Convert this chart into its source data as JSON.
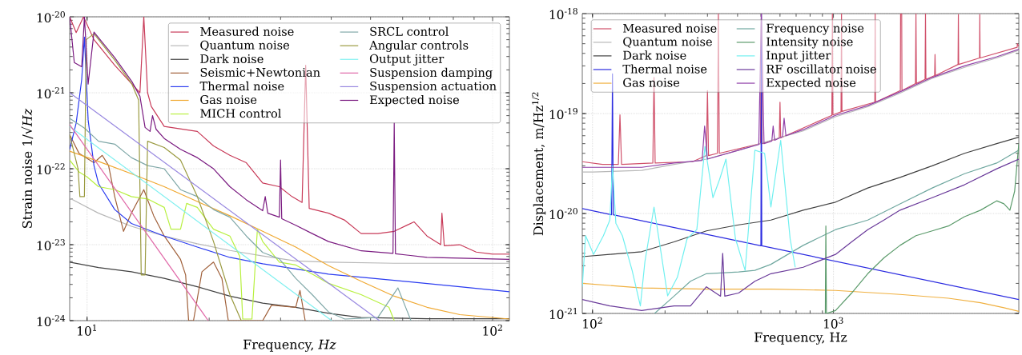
{
  "chart_data": [
    {
      "type": "line",
      "xlabel": "Frequency, *Hz*",
      "ylabel": "Strain noise 1/√*Hz*",
      "log": "xy",
      "grid": true,
      "legend": "top right",
      "xlim": [
        9.06,
        110
      ],
      "ylim": [
        1e-24,
        1e-20
      ],
      "xticks": [
        {
          "value": 10,
          "label": "10$^{1}$"
        },
        {
          "value": 100,
          "label": "10$^{2}$"
        }
      ],
      "yticks": [
        {
          "value": 1e-24,
          "label": "10$^{-24}$"
        },
        {
          "value": 1e-23,
          "label": "10$^{-23}$"
        },
        {
          "value": 1e-22,
          "label": "10$^{-22}$"
        },
        {
          "value": 1e-21,
          "label": "10$^{-21}$"
        },
        {
          "value": 1e-20,
          "label": "10$^{-20}$"
        }
      ],
      "series": [
        {
          "name": "Measured noise",
          "color": "#c83a58",
          "x": [
            9.06,
            9.4,
            9.8,
            10.4,
            11.7,
            12.9,
            13.5,
            13.8,
            14.1,
            14.4,
            15.5,
            18.7,
            20.5,
            22.5,
            24.7,
            27.1,
            29.8,
            32.0,
            33.9,
            34.6,
            35.3,
            39.4,
            43.2,
            47.4,
            52.1,
            57.2,
            64,
            68.9,
            74.5,
            75,
            76,
            83,
            91.1,
            100,
            110
          ],
          "values": [
            1e-20,
            6.2e-21,
            1e-20,
            5e-21,
            2.3e-21,
            1.3e-21,
            1e-21,
            1e-20,
            1e-21,
            6.6e-22,
            3.6e-22,
            3.1e-22,
            2e-22,
            1.5e-22,
            1.2e-22,
            6.5e-23,
            5.8e-23,
            4.3e-23,
            3.6e-23,
            2.3e-21,
            3e-23,
            2.6e-23,
            2.1e-23,
            1.4e-23,
            1.4e-23,
            1.5e-23,
            2e-23,
            1.3e-23,
            1e-23,
            2.6e-23,
            9.7e-24,
            1e-23,
            8e-24,
            7.5e-24,
            7.5e-24
          ]
        },
        {
          "name": "Quantum noise",
          "color": "#b8b8b8",
          "x": [
            9.06,
            10.67,
            12.86,
            15.5,
            18.7,
            22.5,
            27.1,
            32.7,
            39.4,
            57.2,
            110
          ],
          "values": [
            4.1e-23,
            2.6e-23,
            1.75e-23,
            1.3e-23,
            1.03e-23,
            8.4e-24,
            7.1e-24,
            6.1e-24,
            5.9e-24,
            5.7e-24,
            5.7e-24
          ]
        },
        {
          "name": "Dark noise",
          "color": "#404040",
          "x": [
            9.06,
            10.67,
            12.86,
            15.5,
            18.7,
            22.5,
            27.1,
            32.7,
            39.4,
            47.4,
            57.2,
            68.9,
            110
          ],
          "values": [
            5.9e-24,
            5e-24,
            4.4e-24,
            3.6e-24,
            2.8e-24,
            2.1e-24,
            1.7e-24,
            1.5e-24,
            1.25e-24,
            1.1e-24,
            1.08e-24,
            1.06e-24,
            1.06e-24
          ]
        },
        {
          "name": "Seismic+Newtonian",
          "color": "#a0603a",
          "x": [
            9.06,
            9.55,
            10.4,
            10.9,
            11.3,
            11.7,
            12.3,
            12.86,
            13.8,
            14.6,
            15.5,
            17.0,
            17.5,
            17.8,
            18.3,
            19.2,
            20.5,
            21.5,
            22.3,
            27.1,
            28.5,
            32.7,
            33.5,
            34.5
          ],
          "values": [
            2.8e-22,
            1.6e-22,
            1.2e-22,
            1.5e-22,
            1.1e-22,
            4.3e-23,
            1.5e-23,
            2.6e-23,
            5.3e-23,
            2.4e-23,
            1.3e-23,
            6.4e-24,
            4e-24,
            1e-24,
            1e-24,
            4.4e-24,
            5.9e-24,
            3.6e-24,
            1e-24,
            1e-24,
            1.6e-24,
            1.5e-24,
            2.5e-24,
            1e-24
          ]
        },
        {
          "name": "Thermal noise",
          "color": "#2b3cf0",
          "x": [
            9.06,
            9.4,
            9.7,
            9.85,
            10.06,
            10.4,
            10.67,
            11.7,
            12.86,
            15.5,
            18.7,
            22.5,
            27.1,
            32.7,
            39.4,
            57.2,
            83,
            110
          ],
          "values": [
            1.8e-22,
            4e-22,
            1.5e-21,
            5.4e-21,
            4.4e-22,
            1.1e-22,
            6.4e-23,
            2.9e-23,
            1.9e-23,
            1.3e-23,
            9.3e-24,
            6.8e-24,
            5.6e-24,
            4.8e-24,
            4.1e-24,
            3.4e-24,
            2.8e-24,
            2.4e-24
          ]
        },
        {
          "name": "Gas noise",
          "color": "#f0a830",
          "x": [
            9.06,
            10.67,
            12.86,
            15.5,
            18.7,
            22.5,
            27.1,
            32.7,
            39.4,
            47.4,
            57.2,
            68.9,
            83,
            110
          ],
          "values": [
            1.7e-22,
            1.25e-22,
            8.6e-23,
            5.8e-23,
            3.7e-23,
            2.4e-23,
            1.5e-23,
            9.3e-24,
            5.3e-24,
            3.3e-24,
            2.1e-24,
            1.5e-24,
            1.2e-24,
            1.05e-24
          ]
        },
        {
          "name": "MICH control",
          "color": "#b8f040",
          "x": [
            9.06,
            9.55,
            10.0,
            10.67,
            11.72,
            12.86,
            14.1,
            15.5,
            16.1,
            17.0,
            17.6,
            18.7,
            20.5,
            22.5,
            23.8,
            24.2,
            25.5,
            26.3,
            27.1,
            29.8,
            32.7,
            35.9,
            39.4,
            47.4,
            55.5,
            57.2
          ],
          "values": [
            1.3e-22,
            9.1e-23,
            7.8e-23,
            5.8e-23,
            5.3e-23,
            4.3e-23,
            4e-23,
            3.1e-23,
            1.6e-23,
            1.6e-23,
            3.5e-23,
            3.1e-23,
            1.6e-23,
            1.3e-23,
            7e-24,
            1.05e-24,
            1.05e-24,
            1.6e-23,
            1.1e-23,
            5.9e-24,
            5.4e-24,
            4.1e-24,
            3.1e-24,
            2.2e-24,
            1.5e-24,
            1e-24
          ]
        },
        {
          "name": "SRCL control",
          "color": "#80a8a8",
          "x": [
            9.06,
            9.87,
            10.67,
            11.72,
            12.86,
            14.1,
            15.5,
            17.0,
            18.7,
            20.5,
            22.5,
            24.7,
            27.1,
            29.8,
            32.7,
            35.9,
            39.4,
            43.2,
            52.1,
            58.4,
            62.9
          ],
          "values": [
            4.6e-22,
            3.4e-22,
            2.3e-22,
            2.1e-22,
            1.4e-22,
            1.1e-22,
            1e-22,
            5.3e-23,
            4.3e-23,
            2.9e-23,
            2.3e-23,
            1.3e-23,
            7.9e-24,
            6.5e-24,
            3.6e-24,
            2.2e-24,
            1.3e-24,
            1.05e-24,
            1.1e-24,
            2.7e-24,
            1e-24
          ]
        },
        {
          "name": "Angular controls",
          "color": "#9a9a40",
          "x": [
            9.06,
            9.5,
            9.6,
            9.85,
            9.95,
            10.4,
            11.7,
            12.9,
            13.4,
            13.6,
            13.9,
            14.1,
            15.5,
            17.0,
            18.7,
            20.5,
            22.5,
            24.0
          ],
          "values": [
            2.8e-22,
            1e-22,
            4.3e-23,
            4.3e-23,
            5e-21,
            6e-21,
            2.7e-21,
            1.3e-21,
            8e-22,
            4e-24,
            4e-24,
            2.3e-22,
            1.9e-22,
            1.3e-22,
            4.3e-23,
            1.1e-23,
            2.2e-24,
            1e-24
          ]
        },
        {
          "name": "Output jitter",
          "color": "#80f0f0",
          "x": [
            9.06,
            40.1
          ],
          "values": [
            3.6e-22,
            1e-24
          ]
        },
        {
          "name": "Suspension damping",
          "color": "#e068a8",
          "x": [
            9.06,
            19.9
          ],
          "values": [
            3.8e-22,
            1e-24
          ]
        },
        {
          "name": "Suspension actuation",
          "color": "#9888e0",
          "x": [
            9.06,
            52.6
          ],
          "values": [
            1e-21,
            1e-24
          ]
        },
        {
          "name": "Expected noise",
          "color": "#7a1a80",
          "x": [
            9.06,
            9.3,
            9.7,
            9.85,
            10.06,
            10.4,
            11.7,
            12.9,
            13.5,
            13.9,
            14.3,
            14.5,
            14.8,
            15.5,
            17.0,
            18.7,
            20.5,
            22.5,
            24.7,
            27.1,
            27.5,
            27.9,
            29.8,
            30.0,
            30.2,
            32.7,
            35.9,
            39.4,
            47.4,
            56.8,
            57.2,
            57.6,
            68.9,
            110
          ],
          "values": [
            1e-20,
            2.5e-21,
            2.2e-21,
            1e-20,
            1.3e-21,
            6.3e-21,
            2.9e-21,
            1.4e-21,
            9e-22,
            3.5e-22,
            3.1e-22,
            5e-22,
            3.3e-22,
            2.5e-22,
            1.8e-22,
            1.4e-22,
            1e-22,
            5.8e-23,
            3.9e-23,
            2.8e-23,
            4.3e-23,
            2.6e-23,
            2.3e-23,
            1.3e-22,
            2.2e-23,
            1.8e-23,
            1.4e-23,
            1.1e-23,
            8.3e-24,
            7.7e-24,
            4e-22,
            7.6e-24,
            6.8e-24,
            6.4e-24
          ]
        }
      ]
    },
    {
      "type": "line",
      "xlabel": "Frequency, Hz",
      "ylabel": "Displacement, m/Hz$^{1/2}$",
      "log": "xy",
      "grid": true,
      "legend": "top left",
      "xlim": [
        90.7,
        5880
      ],
      "ylim": [
        1e-21,
        1e-18
      ],
      "xticks": [
        {
          "value": 100,
          "label": "10$^{2}$"
        },
        {
          "value": 1000,
          "label": "10$^{3}$"
        }
      ],
      "yticks": [
        {
          "value": 1e-21,
          "label": "10$^{-21}$"
        },
        {
          "value": 1e-20,
          "label": "10$^{-20}$"
        },
        {
          "value": 1e-19,
          "label": "10$^{-19}$"
        },
        {
          "value": 1e-18,
          "label": "10$^{-18}$"
        }
      ],
      "series": [
        {
          "name": "Measured noise",
          "color": "#d0506a",
          "x": [
            90.7,
            110,
            128,
            130,
            132,
            178,
            180,
            182,
            260,
            297,
            300,
            303,
            330,
            333,
            336,
            498,
            502,
            506,
            596,
            600,
            604,
            985,
            990,
            995,
            1075,
            1080,
            1085,
            1485,
            1490,
            1495,
            1895,
            1900,
            1920,
            1925,
            2190,
            2200,
            2210,
            2400,
            2410,
            2420,
            2630,
            2640,
            2650,
            3290,
            3300,
            3310,
            4040,
            4050,
            4060,
            5790,
            5800,
            5880
          ],
          "values": [
            3.3e-20,
            3.1e-20,
            3.1e-20,
            9.7e-20,
            3.1e-20,
            3.2e-20,
            2.3e-19,
            3.2e-20,
            3.3e-20,
            3.8e-20,
            1.7e-19,
            3.8e-20,
            4e-20,
            1e-18,
            4e-20,
            5e-20,
            1e-18,
            5e-20,
            5.7e-20,
            1.3e-19,
            5.7e-20,
            9.6e-20,
            1e-18,
            9.7e-20,
            1.04e-19,
            1e-18,
            1.05e-19,
            1.3e-19,
            1e-18,
            1.3e-19,
            1.7e-19,
            1e-18,
            1e-18,
            1.7e-19,
            2e-19,
            1e-18,
            2e-19,
            2.2e-19,
            1e-18,
            2.2e-19,
            2.4e-19,
            3.9e-19,
            2.4e-19,
            3.1e-19,
            9.8e-19,
            3.1e-19,
            3.6e-19,
            9.8e-19,
            3.6e-19,
            4.6e-19,
            5e-19,
            4.7e-19
          ]
        },
        {
          "name": "Quantum noise",
          "color": "#b8b8b8",
          "x": [
            90.7,
            101,
            160,
            218,
            297,
            404,
            550,
            749,
            1020,
            1388,
            1890,
            2570,
            3500,
            4760,
            5880
          ],
          "values": [
            2.6e-20,
            2.6e-20,
            2.7e-20,
            3.1e-20,
            3.5e-20,
            4.3e-20,
            5.4e-20,
            6.7e-20,
            9.3e-20,
            1.17e-19,
            1.6e-19,
            2.25e-19,
            2.9e-19,
            3.6e-19,
            4.3e-19
          ]
        },
        {
          "name": "Dark noise",
          "color": "#404040",
          "x": [
            90.7,
            118,
            160,
            218,
            297,
            404,
            550,
            749,
            1020,
            1388,
            1890,
            2570,
            3500,
            4760,
            5880
          ],
          "values": [
            3.7e-21,
            3.9e-21,
            4.15e-21,
            5.2e-21,
            6.7e-21,
            7.7e-21,
            8.6e-21,
            1.08e-20,
            1.3e-20,
            1.8e-20,
            2.3e-20,
            3e-20,
            4e-20,
            5e-20,
            5.8e-20
          ]
        },
        {
          "name": "Thermal noise",
          "color": "#2b2be0",
          "x": [
            90.7,
            120,
            121,
            122,
            500,
            502,
            504,
            5880
          ],
          "values": [
            1.12e-20,
            9.7e-21,
            2.5e-19,
            9.7e-21,
            4.75e-21,
            1e-18,
            4.75e-21,
            1.38e-21
          ]
        },
        {
          "name": "Gas noise",
          "color": "#f0b040",
          "x": [
            90.7,
            160,
            297,
            550,
            1020,
            1890,
            3000,
            4080,
            5100,
            5880
          ],
          "values": [
            2e-21,
            1.8e-21,
            1.75e-21,
            1.75e-21,
            1.7e-21,
            1.55e-21,
            1.42e-21,
            1.28e-21,
            1.14e-21,
            1.05e-21
          ]
        },
        {
          "name": "Frequency noise",
          "color": "#70a8a0",
          "x": [
            181,
            218,
            255,
            297,
            404,
            472,
            550,
            749,
            1020,
            1388,
            1890,
            2570,
            3500,
            4760,
            5880
          ],
          "values": [
            1e-21,
            1.49e-21,
            2.1e-21,
            2.5e-21,
            2.6e-21,
            2.7e-21,
            3.1e-21,
            4.8e-21,
            6.9e-21,
            8.6e-21,
            1.25e-20,
            1.8e-20,
            2.5e-20,
            3.2e-20,
            4.3e-20
          ]
        },
        {
          "name": "Intensity noise",
          "color": "#5a9a6a",
          "x": [
            925,
            930,
            935,
            1020,
            1190,
            1388,
            1620,
            1890,
            2200,
            2570,
            3000,
            3500,
            4080,
            4760,
            5100,
            5400,
            5650,
            5880
          ],
          "values": [
            1e-21,
            7.5e-21,
            1e-21,
            1.07e-21,
            1.6e-21,
            2.5e-21,
            3.6e-21,
            4.8e-21,
            6e-21,
            6.7e-21,
            7.5e-21,
            9.3e-21,
            1.08e-20,
            1.34e-20,
            1.25e-20,
            1.08e-20,
            1.67e-20,
            5e-20
          ]
        },
        {
          "name": "Input jitter",
          "color": "#70f0f0",
          "x": [
            90.7,
            93.6,
            101,
            111,
            118,
            121,
            125,
            133,
            146,
            158,
            165,
            180,
            193,
            205,
            225,
            247,
            271,
            293,
            316,
            337,
            358,
            392,
            430,
            472,
            518,
            550,
            604,
            661,
            694
          ],
          "values": [
            1.85e-21,
            6e-21,
            3.9e-21,
            6e-21,
            8.6e-21,
            3e-20,
            8e-21,
            6e-21,
            2.7e-21,
            1.19e-21,
            3.3e-21,
            1.16e-20,
            3.9e-21,
            1.5e-21,
            2.3e-21,
            5.6e-21,
            6.9e-21,
            4.7e-20,
            1.44e-20,
            2.2e-20,
            3.5e-20,
            5.6e-21,
            2.7e-21,
            4.3e-20,
            4e-20,
            1.16e-20,
            5.4e-20,
            5.6e-21,
            2.9e-21
          ]
        },
        {
          "name": "RF oscillator noise",
          "color": "#6a3a9a",
          "x": [
            90.7,
            118,
            160,
            218,
            255,
            297,
            340,
            347,
            354,
            404,
            472,
            550,
            749,
            1020,
            1190,
            1388,
            1620,
            1890,
            2570,
            3500,
            4760,
            5880
          ],
          "values": [
            1.38e-21,
            1.19e-21,
            1.07e-21,
            1.19e-21,
            1.19e-21,
            1.85e-21,
            1.49e-21,
            4e-21,
            1.49e-21,
            1.6e-21,
            2.1e-21,
            2.5e-21,
            2.9e-21,
            3.9e-21,
            5.2e-21,
            6.9e-21,
            8.6e-21,
            1.08e-20,
            1.44e-20,
            1.94e-20,
            2.8e-20,
            3.5e-20
          ]
        },
        {
          "name": "Expected noise",
          "color": "#9040a8",
          "x": [
            90.7,
            160,
            218,
            285,
            292,
            300,
            404,
            490,
            502,
            515,
            555,
            562,
            570,
            615,
            624,
            635,
            749,
            1020,
            1388,
            1890,
            2570,
            3500,
            4760,
            5880
          ],
          "values": [
            2.9e-20,
            2.9e-20,
            3.2e-20,
            3.4e-20,
            7.5e-20,
            3.5e-20,
            4.3e-20,
            4.9e-20,
            1e-18,
            5e-20,
            5.3e-20,
            7.5e-20,
            5.4e-20,
            5.9e-20,
            9e-20,
            6e-20,
            6.9e-20,
            9.6e-20,
            1.2e-19,
            1.65e-19,
            2.3e-19,
            3e-19,
            3.7e-19,
            4.4e-19
          ]
        }
      ]
    }
  ]
}
